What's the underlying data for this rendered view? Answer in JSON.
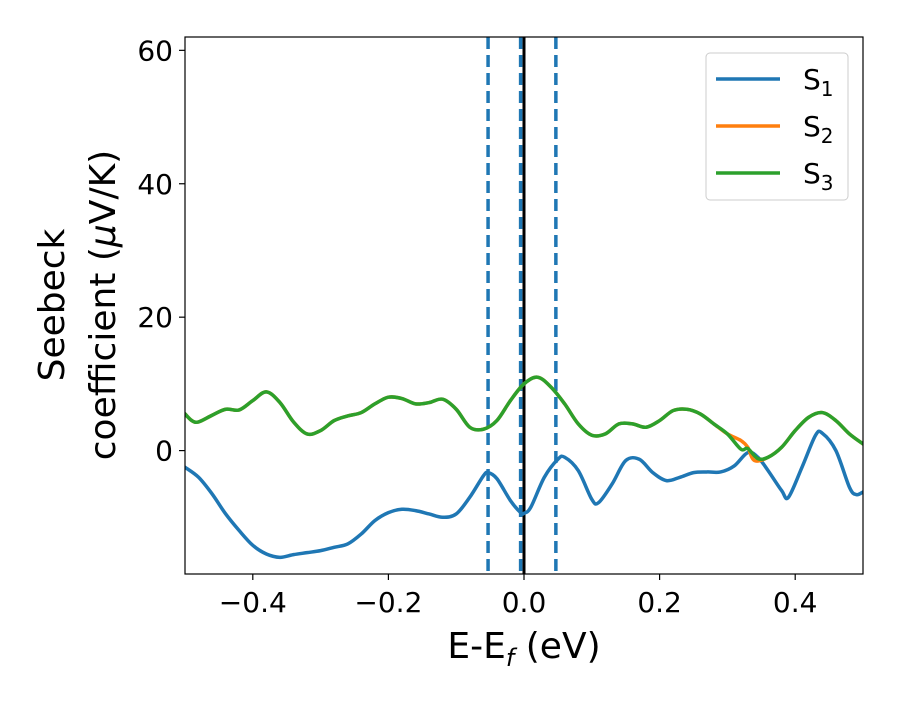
{
  "chart_data": {
    "type": "line",
    "xlabel": "E-E",
    "xlabel_sub": "f",
    "xlabel_unit": " (eV)",
    "ylabel_line1": "Seebeck",
    "ylabel_line2_prefix": "coefficient  (",
    "ylabel_mu": "μ",
    "ylabel_line2_suffix": "V/K)",
    "xlim": [
      -0.5,
      0.5
    ],
    "ylim": [
      -18.5,
      62
    ],
    "xticks": [
      -0.4,
      -0.2,
      0.0,
      0.2,
      0.4
    ],
    "xtick_labels": [
      "−0.4",
      "−0.2",
      "0.0",
      "0.2",
      "0.4"
    ],
    "yticks": [
      0,
      20,
      40,
      60
    ],
    "ytick_labels": [
      "0",
      "20",
      "40",
      "60"
    ],
    "grid": false,
    "legend_position": "top-right",
    "vlines": [
      {
        "x": -0.053,
        "style": "dashed",
        "color": "#1f77b4"
      },
      {
        "x": -0.005,
        "style": "dashed",
        "color": "#1f77b4"
      },
      {
        "x": 0.0,
        "style": "solid",
        "color": "#000000"
      },
      {
        "x": 0.047,
        "style": "dashed",
        "color": "#1f77b4"
      }
    ],
    "series": [
      {
        "name": "S",
        "sub": "1",
        "color": "#1f77b4",
        "points": [
          [
            -0.5,
            -2.5
          ],
          [
            -0.48,
            -4
          ],
          [
            -0.46,
            -6.5
          ],
          [
            -0.44,
            -9.5
          ],
          [
            -0.42,
            -12
          ],
          [
            -0.4,
            -14.2
          ],
          [
            -0.38,
            -15.5
          ],
          [
            -0.36,
            -16
          ],
          [
            -0.34,
            -15.6
          ],
          [
            -0.32,
            -15.3
          ],
          [
            -0.3,
            -15
          ],
          [
            -0.28,
            -14.5
          ],
          [
            -0.26,
            -14
          ],
          [
            -0.24,
            -12.5
          ],
          [
            -0.22,
            -10.5
          ],
          [
            -0.2,
            -9.3
          ],
          [
            -0.18,
            -8.8
          ],
          [
            -0.16,
            -9
          ],
          [
            -0.14,
            -9.5
          ],
          [
            -0.12,
            -10
          ],
          [
            -0.1,
            -9.5
          ],
          [
            -0.08,
            -7
          ],
          [
            -0.06,
            -3.8
          ],
          [
            -0.053,
            -3.3
          ],
          [
            -0.04,
            -4.2
          ],
          [
            -0.02,
            -7.5
          ],
          [
            -0.005,
            -9.3
          ],
          [
            0.0,
            -9.4
          ],
          [
            0.01,
            -8.5
          ],
          [
            0.03,
            -4
          ],
          [
            0.05,
            -1.3
          ],
          [
            0.06,
            -1
          ],
          [
            0.08,
            -3
          ],
          [
            0.1,
            -7.3
          ],
          [
            0.11,
            -7.8
          ],
          [
            0.13,
            -5
          ],
          [
            0.15,
            -1.5
          ],
          [
            0.17,
            -1.3
          ],
          [
            0.19,
            -3.3
          ],
          [
            0.21,
            -4.5
          ],
          [
            0.23,
            -4
          ],
          [
            0.25,
            -3.3
          ],
          [
            0.27,
            -3.2
          ],
          [
            0.29,
            -3.2
          ],
          [
            0.31,
            -2.3
          ],
          [
            0.33,
            -0.3
          ],
          [
            0.345,
            -1
          ],
          [
            0.36,
            -3
          ],
          [
            0.38,
            -6
          ],
          [
            0.39,
            -7
          ],
          [
            0.41,
            -2.5
          ],
          [
            0.43,
            2.3
          ],
          [
            0.44,
            2.6
          ],
          [
            0.46,
            0
          ],
          [
            0.48,
            -5.5
          ],
          [
            0.49,
            -6.6
          ],
          [
            0.5,
            -6.2
          ]
        ]
      },
      {
        "name": "S",
        "sub": "2",
        "color": "#ff7f0e",
        "points": [
          [
            -0.5,
            5.5
          ],
          [
            -0.49,
            4.5
          ],
          [
            -0.48,
            4.3
          ],
          [
            -0.46,
            5.3
          ],
          [
            -0.44,
            6.2
          ],
          [
            -0.42,
            6.1
          ],
          [
            -0.4,
            7.5
          ],
          [
            -0.38,
            8.8
          ],
          [
            -0.36,
            7.2
          ],
          [
            -0.34,
            4.3
          ],
          [
            -0.32,
            2.5
          ],
          [
            -0.3,
            3
          ],
          [
            -0.28,
            4.5
          ],
          [
            -0.26,
            5.2
          ],
          [
            -0.24,
            5.7
          ],
          [
            -0.22,
            7
          ],
          [
            -0.2,
            8
          ],
          [
            -0.18,
            7.8
          ],
          [
            -0.16,
            7
          ],
          [
            -0.14,
            7.2
          ],
          [
            -0.12,
            7.7
          ],
          [
            -0.1,
            6.2
          ],
          [
            -0.08,
            3.5
          ],
          [
            -0.06,
            3.2
          ],
          [
            -0.04,
            4.5
          ],
          [
            -0.02,
            7.5
          ],
          [
            0.0,
            10
          ],
          [
            0.02,
            11
          ],
          [
            0.04,
            9.5
          ],
          [
            0.06,
            7
          ],
          [
            0.08,
            4
          ],
          [
            0.1,
            2.3
          ],
          [
            0.12,
            2.5
          ],
          [
            0.14,
            4
          ],
          [
            0.16,
            4
          ],
          [
            0.18,
            3.5
          ],
          [
            0.2,
            4.5
          ],
          [
            0.22,
            6
          ],
          [
            0.24,
            6.2
          ],
          [
            0.26,
            5.5
          ],
          [
            0.28,
            4
          ],
          [
            0.3,
            2.5
          ],
          [
            0.32,
            1.5
          ],
          [
            0.33,
            0.5
          ],
          [
            0.34,
            -1.5
          ],
          [
            0.36,
            -1
          ],
          [
            0.38,
            0.5
          ],
          [
            0.4,
            3
          ],
          [
            0.42,
            5
          ],
          [
            0.44,
            5.7
          ],
          [
            0.46,
            4.5
          ],
          [
            0.48,
            2.5
          ],
          [
            0.5,
            1
          ]
        ]
      },
      {
        "name": "S",
        "sub": "3",
        "color": "#2ca02c",
        "points": [
          [
            -0.5,
            5.5
          ],
          [
            -0.49,
            4.5
          ],
          [
            -0.48,
            4.3
          ],
          [
            -0.46,
            5.3
          ],
          [
            -0.44,
            6.2
          ],
          [
            -0.42,
            6.1
          ],
          [
            -0.4,
            7.5
          ],
          [
            -0.38,
            8.8
          ],
          [
            -0.36,
            7.2
          ],
          [
            -0.34,
            4.3
          ],
          [
            -0.32,
            2.5
          ],
          [
            -0.3,
            3
          ],
          [
            -0.28,
            4.5
          ],
          [
            -0.26,
            5.2
          ],
          [
            -0.24,
            5.7
          ],
          [
            -0.22,
            7
          ],
          [
            -0.2,
            8
          ],
          [
            -0.18,
            7.8
          ],
          [
            -0.16,
            7
          ],
          [
            -0.14,
            7.2
          ],
          [
            -0.12,
            7.7
          ],
          [
            -0.1,
            6.2
          ],
          [
            -0.08,
            3.5
          ],
          [
            -0.06,
            3.2
          ],
          [
            -0.04,
            4.5
          ],
          [
            -0.02,
            7.5
          ],
          [
            0.0,
            10
          ],
          [
            0.02,
            11
          ],
          [
            0.04,
            9.5
          ],
          [
            0.06,
            7
          ],
          [
            0.08,
            4
          ],
          [
            0.1,
            2.3
          ],
          [
            0.12,
            2.5
          ],
          [
            0.14,
            4
          ],
          [
            0.16,
            4
          ],
          [
            0.18,
            3.5
          ],
          [
            0.2,
            4.5
          ],
          [
            0.22,
            6
          ],
          [
            0.24,
            6.2
          ],
          [
            0.26,
            5.5
          ],
          [
            0.28,
            4
          ],
          [
            0.3,
            2.5
          ],
          [
            0.32,
            0.2
          ],
          [
            0.33,
            0.3
          ],
          [
            0.345,
            -1.2
          ],
          [
            0.36,
            -1
          ],
          [
            0.38,
            0.5
          ],
          [
            0.4,
            3
          ],
          [
            0.42,
            5
          ],
          [
            0.44,
            5.7
          ],
          [
            0.46,
            4.5
          ],
          [
            0.48,
            2.5
          ],
          [
            0.5,
            1
          ]
        ]
      }
    ]
  }
}
